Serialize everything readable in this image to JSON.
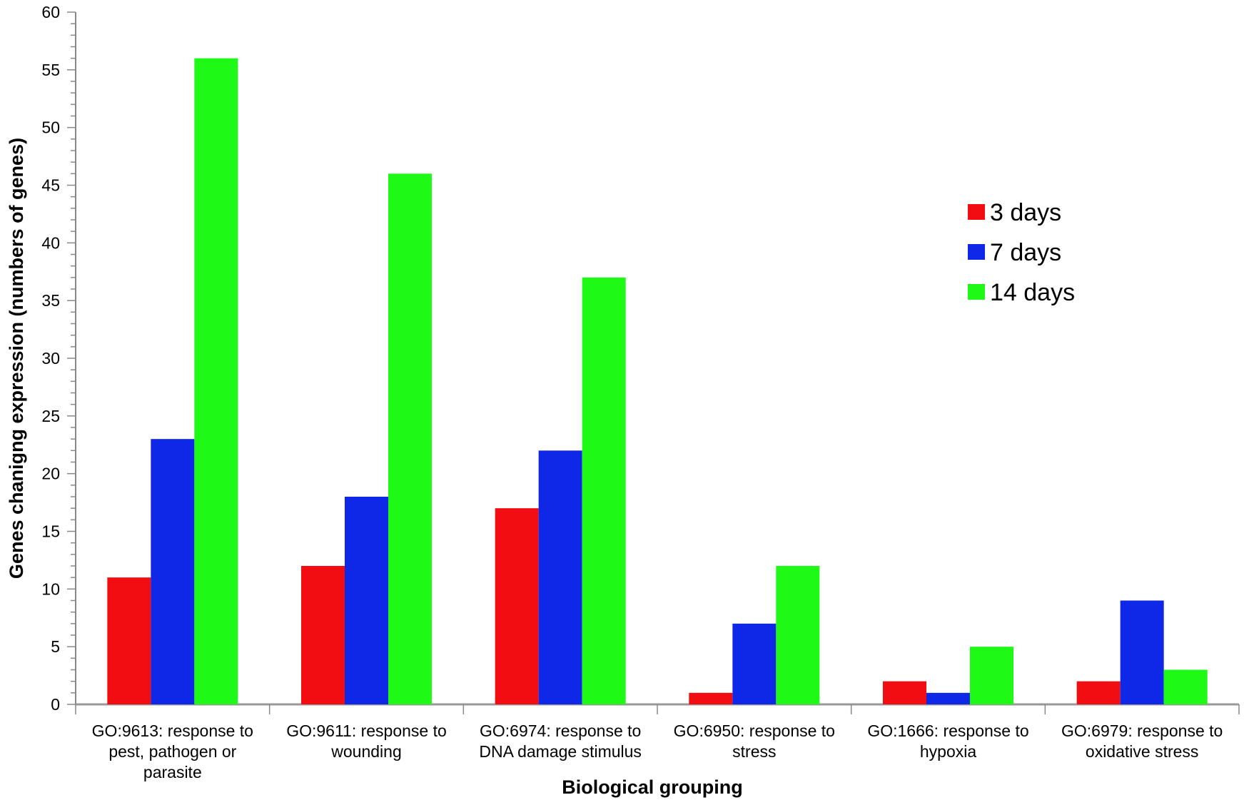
{
  "chart_data": {
    "type": "bar",
    "title": "",
    "xlabel": "Biological grouping",
    "ylabel": "Genes chanigng expression (numbers of genes)",
    "ylim": [
      0,
      60
    ],
    "y_ticks": [
      0,
      5,
      10,
      15,
      20,
      25,
      30,
      35,
      40,
      45,
      50,
      55,
      60
    ],
    "y_minor_step": 1,
    "grid": false,
    "legend_position": "right",
    "categories": [
      [
        "GO:9613: response to",
        "pest, pathogen or",
        "parasite"
      ],
      [
        "GO:9611: response to",
        "wounding"
      ],
      [
        "GO:6974: response to",
        "DNA damage stimulus"
      ],
      [
        "GO:6950: response to",
        "stress"
      ],
      [
        "GO:1666: response to",
        "hypoxia"
      ],
      [
        "GO:6979: response to",
        "oxidative stress"
      ]
    ],
    "series": [
      {
        "name": "3 days",
        "color": "#f20d12",
        "values": [
          11,
          12,
          17,
          1,
          2,
          2
        ]
      },
      {
        "name": "7 days",
        "color": "#0f28e8",
        "values": [
          23,
          18,
          22,
          7,
          1,
          9
        ]
      },
      {
        "name": "14 days",
        "color": "#1ef915",
        "values": [
          56,
          46,
          37,
          12,
          5,
          3
        ]
      }
    ]
  }
}
